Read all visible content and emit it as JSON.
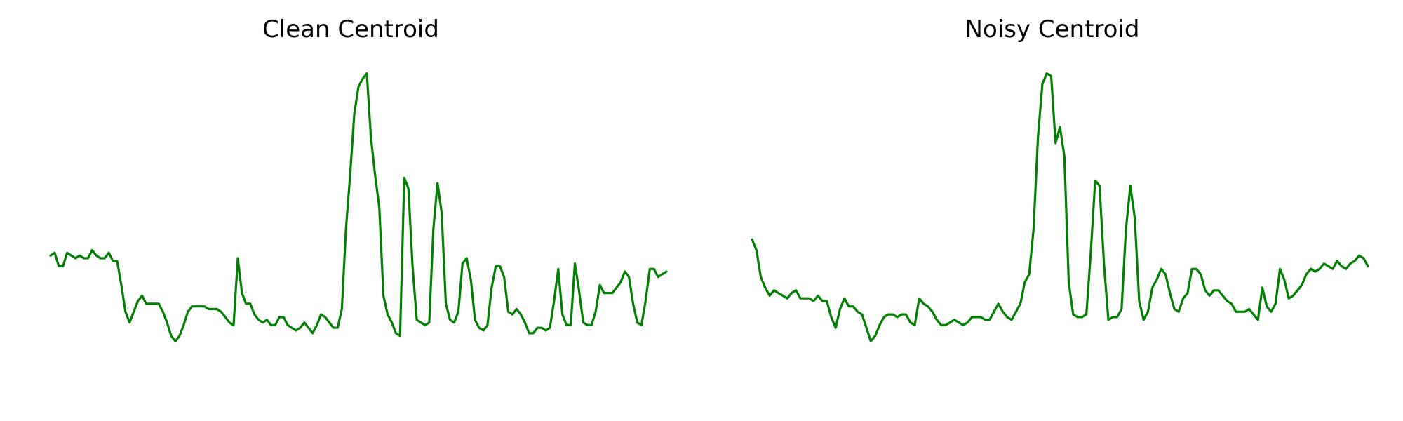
{
  "chart_data": [
    {
      "type": "line",
      "title": "Clean Centroid",
      "xlabel": "",
      "ylabel": "",
      "axes_visible": false,
      "grid": false,
      "color": "#008000",
      "ylim": [
        -0.2,
        1.0
      ],
      "series": [
        {
          "values": [
            0.3,
            0.31,
            0.26,
            0.26,
            0.31,
            0.3,
            0.29,
            0.3,
            0.29,
            0.29,
            0.32,
            0.3,
            0.29,
            0.29,
            0.31,
            0.28,
            0.28,
            0.19,
            0.09,
            0.05,
            0.09,
            0.13,
            0.15,
            0.12,
            0.12,
            0.12,
            0.12,
            0.09,
            0.05,
            0.0,
            -0.02,
            0.0,
            0.04,
            0.09,
            0.11,
            0.11,
            0.11,
            0.11,
            0.1,
            0.1,
            0.1,
            0.09,
            0.07,
            0.05,
            0.04,
            0.29,
            0.16,
            0.12,
            0.12,
            0.08,
            0.06,
            0.05,
            0.06,
            0.04,
            0.04,
            0.07,
            0.07,
            0.04,
            0.03,
            0.02,
            0.03,
            0.05,
            0.03,
            0.01,
            0.04,
            0.08,
            0.07,
            0.05,
            0.03,
            0.03,
            0.1,
            0.4,
            0.6,
            0.83,
            0.93,
            0.96,
            0.98,
            0.74,
            0.6,
            0.48,
            0.15,
            0.08,
            0.05,
            0.01,
            0.0,
            0.59,
            0.55,
            0.26,
            0.06,
            0.05,
            0.04,
            0.05,
            0.4,
            0.57,
            0.46,
            0.12,
            0.06,
            0.05,
            0.09,
            0.27,
            0.29,
            0.21,
            0.06,
            0.03,
            0.02,
            0.04,
            0.18,
            0.26,
            0.26,
            0.22,
            0.09,
            0.08,
            0.1,
            0.08,
            0.05,
            0.01,
            0.01,
            0.03,
            0.03,
            0.02,
            0.03,
            0.13,
            0.25,
            0.08,
            0.04,
            0.04,
            0.27,
            0.17,
            0.05,
            0.04,
            0.04,
            0.09,
            0.19,
            0.16,
            0.16,
            0.16,
            0.18,
            0.2,
            0.24,
            0.22,
            0.12,
            0.05,
            0.04,
            0.13,
            0.25,
            0.25,
            0.22,
            0.23,
            0.24
          ]
        }
      ]
    },
    {
      "type": "line",
      "title": "Noisy Centroid",
      "xlabel": "",
      "ylabel": "",
      "axes_visible": false,
      "grid": false,
      "color": "#008000",
      "ylim": [
        -0.2,
        1.0
      ],
      "series": [
        {
          "values": [
            0.36,
            0.32,
            0.22,
            0.18,
            0.15,
            0.17,
            0.16,
            0.15,
            0.14,
            0.16,
            0.17,
            0.14,
            0.14,
            0.14,
            0.13,
            0.15,
            0.13,
            0.13,
            0.07,
            0.03,
            0.1,
            0.14,
            0.11,
            0.11,
            0.09,
            0.08,
            0.03,
            -0.02,
            0.0,
            0.04,
            0.07,
            0.08,
            0.08,
            0.07,
            0.08,
            0.08,
            0.05,
            0.04,
            0.14,
            0.12,
            0.11,
            0.09,
            0.06,
            0.04,
            0.04,
            0.05,
            0.06,
            0.05,
            0.04,
            0.05,
            0.07,
            0.07,
            0.07,
            0.06,
            0.06,
            0.09,
            0.12,
            0.09,
            0.07,
            0.06,
            0.09,
            0.12,
            0.2,
            0.23,
            0.4,
            0.74,
            0.94,
            0.98,
            0.97,
            0.72,
            0.78,
            0.67,
            0.2,
            0.08,
            0.07,
            0.07,
            0.08,
            0.31,
            0.58,
            0.56,
            0.27,
            0.06,
            0.07,
            0.07,
            0.1,
            0.4,
            0.56,
            0.44,
            0.13,
            0.06,
            0.09,
            0.18,
            0.21,
            0.25,
            0.23,
            0.16,
            0.1,
            0.09,
            0.14,
            0.16,
            0.25,
            0.25,
            0.23,
            0.17,
            0.15,
            0.17,
            0.17,
            0.15,
            0.13,
            0.12,
            0.09,
            0.09,
            0.09,
            0.1,
            0.08,
            0.06,
            0.18,
            0.11,
            0.09,
            0.12,
            0.25,
            0.21,
            0.14,
            0.15,
            0.17,
            0.19,
            0.23,
            0.25,
            0.24,
            0.25,
            0.27,
            0.26,
            0.25,
            0.28,
            0.26,
            0.25,
            0.27,
            0.28,
            0.3,
            0.29,
            0.26
          ]
        }
      ]
    }
  ]
}
